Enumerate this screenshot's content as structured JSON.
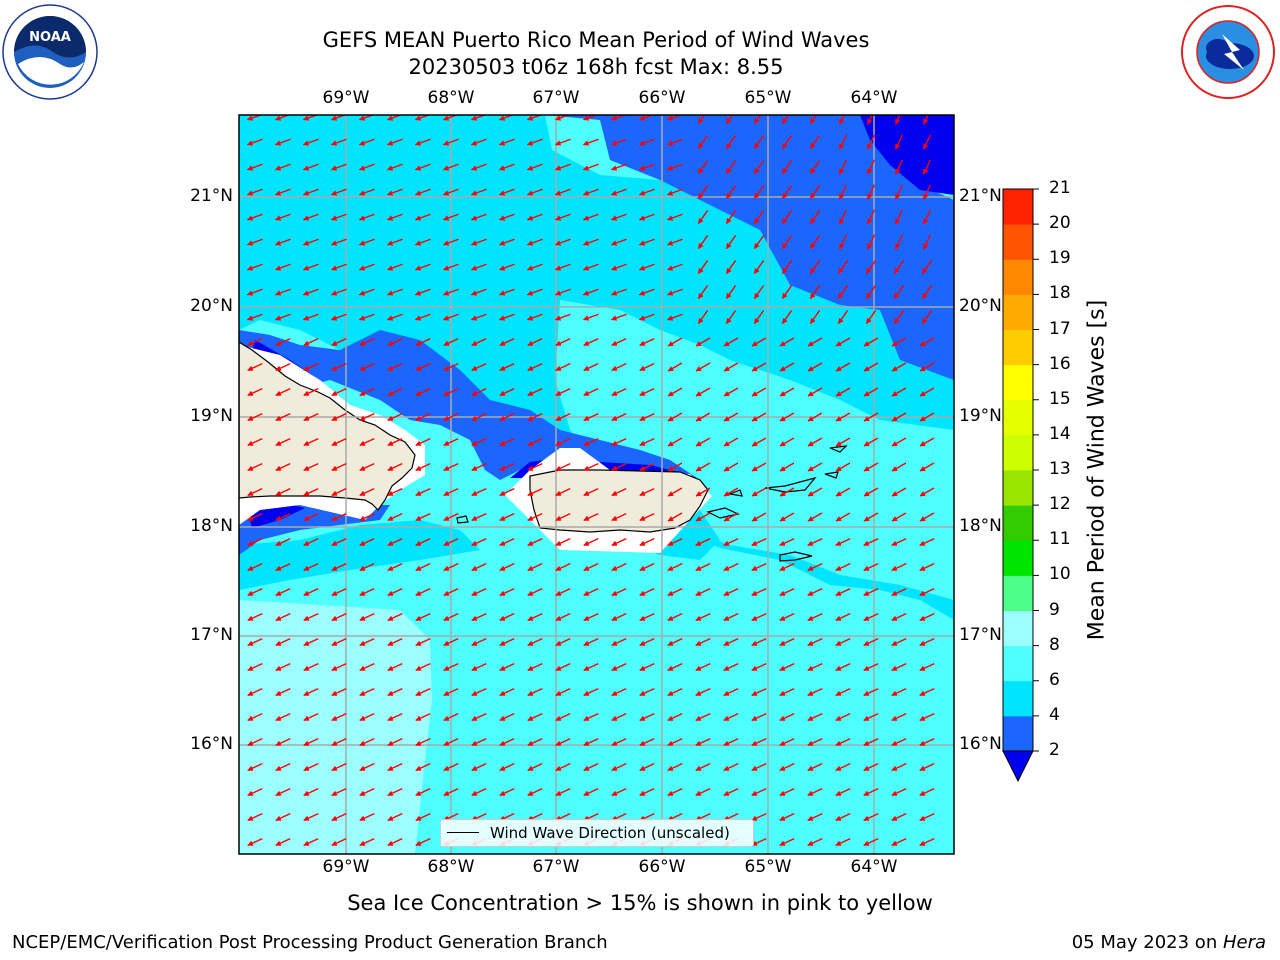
{
  "header": {
    "title_line1": "GEFS MEAN Puerto Rico Mean Period of Wind Waves",
    "title_line2": "20230503 t06z 168h fcst   Max: 8.55"
  },
  "map": {
    "lon_ticks": [
      "69°W",
      "68°W",
      "67°W",
      "66°W",
      "65°W",
      "64°W"
    ],
    "lat_ticks": [
      "21°N",
      "20°N",
      "19°N",
      "18°N",
      "17°N",
      "16°N"
    ],
    "legend_label": "Wind Wave Direction (unscaled)",
    "colors": {
      "land": "#efecdc",
      "ice_free_mask": "#ffffff",
      "arrow": "#ff0000",
      "grid": "#aaaaaa"
    }
  },
  "colorbar": {
    "title": "Mean Period of Wind Waves [s]",
    "levels": [
      "2",
      "4",
      "6",
      "8",
      "9",
      "10",
      "11",
      "12",
      "13",
      "14",
      "15",
      "16",
      "17",
      "18",
      "19",
      "20",
      "21"
    ],
    "colors": [
      "#1a66ff",
      "#00e5ff",
      "#4dffff",
      "#9cffff",
      "#4dff88",
      "#00e500",
      "#33cc00",
      "#99e500",
      "#ccff00",
      "#e5ff00",
      "#ffff00",
      "#ffcc00",
      "#ffaa00",
      "#ff8800",
      "#ff5500",
      "#ff2200"
    ],
    "under_color": "#0000ee"
  },
  "subtitle": "Sea Ice Concentration > 15% is shown in pink to yellow",
  "footer": {
    "left": "NCEP/EMC/Verification Post Processing Product Generation Branch",
    "date": "05 May 2023 on ",
    "machine": "Hera"
  },
  "logos": {
    "left": "noaa-logo",
    "right": "nws-logo"
  }
}
